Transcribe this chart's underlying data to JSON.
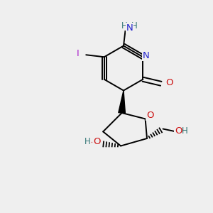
{
  "bg_color": "#efefef",
  "atom_colors": {
    "N": "#2222cc",
    "O": "#cc1111",
    "I": "#aa22cc",
    "H": "#337777"
  },
  "bond_color": "#000000",
  "bond_width": 1.4,
  "fig_size": [
    3.0,
    3.0
  ],
  "dpi": 100
}
